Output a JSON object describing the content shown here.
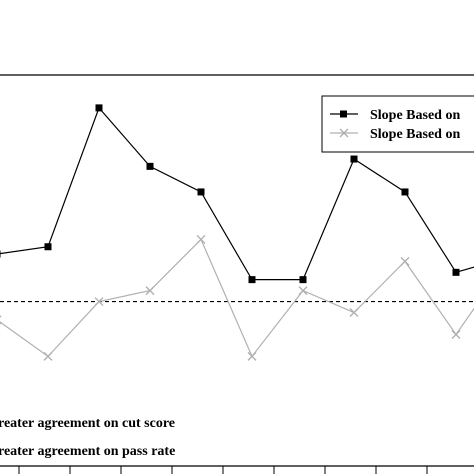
{
  "chart_data": {
    "type": "line",
    "x": [
      0,
      1,
      2,
      3,
      4,
      5,
      6,
      7,
      8,
      9,
      10
    ],
    "series": [
      {
        "name": "Slope Based on",
        "color": "#000000",
        "marker": "square",
        "values": [
          0.13,
          0.15,
          0.53,
          0.37,
          0.3,
          0.06,
          0.06,
          0.39,
          0.3,
          0.08,
          0.12
        ]
      },
      {
        "name": "Slope Based on",
        "color": "#b0b0b0",
        "marker": "x",
        "values": [
          -0.05,
          -0.15,
          0.0,
          0.03,
          0.17,
          -0.15,
          0.03,
          -0.03,
          0.11,
          -0.09,
          0.11
        ]
      }
    ],
    "reference_line": {
      "y": 0,
      "style": "dashed"
    },
    "annotations": [
      "reater agreement on cut score",
      "reater agreement on pass rate"
    ],
    "ylim": [
      -0.45,
      0.62
    ],
    "grid": false,
    "legend": "top-right"
  }
}
